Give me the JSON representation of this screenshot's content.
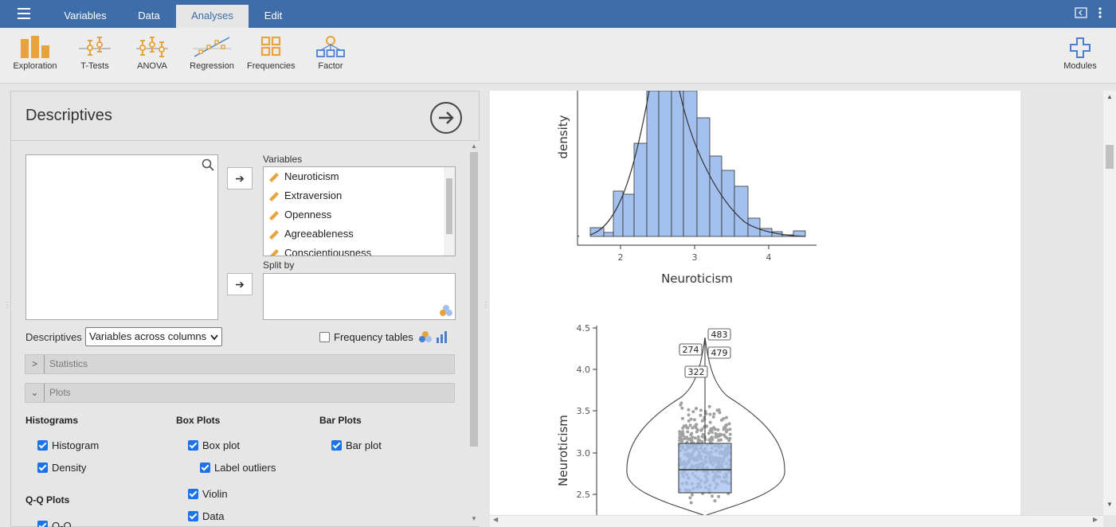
{
  "topbar": {
    "tabs": [
      "Variables",
      "Data",
      "Analyses",
      "Edit"
    ],
    "active_tab": "Analyses"
  },
  "ribbon": {
    "items": [
      "Exploration",
      "T-Tests",
      "ANOVA",
      "Regression",
      "Frequencies",
      "Factor"
    ],
    "modules_label": "Modules"
  },
  "descriptives": {
    "title": "Descriptives",
    "variables_label": "Variables",
    "variables": [
      "Neuroticism",
      "Extraversion",
      "Openness",
      "Agreeableness",
      "Conscientiousness"
    ],
    "split_by_label": "Split by",
    "descriptives_label": "Descriptives",
    "layout_select_value": "Variables across columns",
    "frequency_tables_label": "Frequency tables",
    "frequency_tables_checked": false,
    "statistics_label": "Statistics",
    "plots_label": "Plots"
  },
  "plots": {
    "histograms_header": "Histograms",
    "histogram_label": "Histogram",
    "density_label": "Density",
    "boxplots_header": "Box Plots",
    "boxplot_label": "Box plot",
    "label_outliers_label": "Label outliers",
    "violin_label": "Violin",
    "data_label": "Data",
    "barplots_header": "Bar Plots",
    "barplot_label": "Bar plot",
    "qq_header": "Q-Q Plots",
    "qq_label": "Q-Q"
  },
  "output": {
    "histogram": {
      "ylabel": "density",
      "xlabel": "Neuroticism",
      "xticks": [
        "2",
        "3",
        "4"
      ]
    },
    "boxplot": {
      "ylabel": "Neuroticism",
      "yticks": [
        "4.5",
        "4.0",
        "3.5",
        "3.0",
        "2.5"
      ],
      "outlier_labels": [
        "483",
        "274",
        "479",
        "322"
      ]
    }
  },
  "colors": {
    "topbar": "#3e6da9",
    "accent_blue": "#1a73e8",
    "icon_orange": "#e8a33d",
    "bar_fill": "#a3c0ee"
  }
}
